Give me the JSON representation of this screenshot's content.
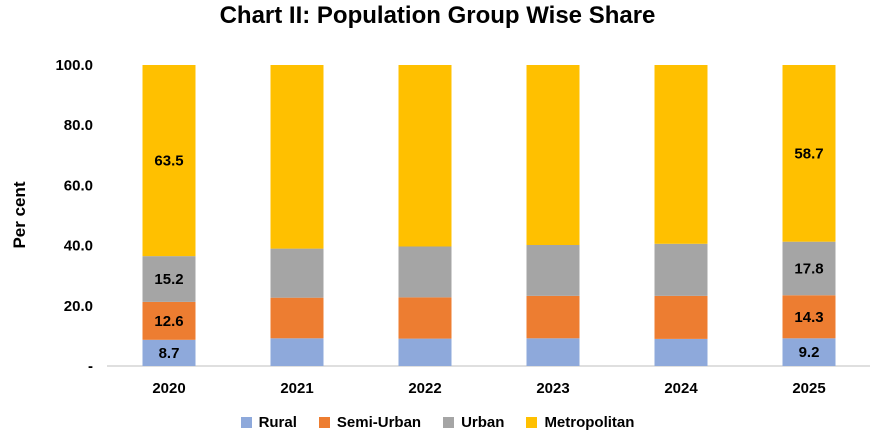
{
  "chart_data": {
    "type": "bar",
    "stacked": true,
    "title": "Chart II: Population Group Wise Share",
    "ylabel": "Per cent",
    "xlabel": "",
    "ylim": [
      0,
      100
    ],
    "yticks": [
      "-",
      "20.0",
      "40.0",
      "60.0",
      "80.0",
      "100.0"
    ],
    "categories": [
      "2020",
      "2021",
      "2022",
      "2023",
      "2024",
      "2025"
    ],
    "series": [
      {
        "name": "Rural",
        "color": "#8EA9DB",
        "values": [
          8.7,
          9.2,
          9.1,
          9.2,
          9.0,
          9.2
        ],
        "labels": [
          "8.7",
          "",
          "",
          "",
          "",
          "9.2"
        ]
      },
      {
        "name": "Semi-Urban",
        "color": "#ED7D31",
        "values": [
          12.6,
          13.5,
          13.7,
          14.1,
          14.3,
          14.3
        ],
        "labels": [
          "12.6",
          "",
          "",
          "",
          "",
          "14.3"
        ]
      },
      {
        "name": "Urban",
        "color": "#A5A5A5",
        "values": [
          15.2,
          16.3,
          16.9,
          16.9,
          17.3,
          17.8
        ],
        "labels": [
          "15.2",
          "",
          "",
          "",
          "",
          "17.8"
        ]
      },
      {
        "name": "Metropolitan",
        "color": "#FFC000",
        "values": [
          63.5,
          61.0,
          60.3,
          59.8,
          59.4,
          58.7
        ],
        "labels": [
          "63.5",
          "",
          "",
          "",
          "",
          "58.7"
        ]
      }
    ],
    "grid": false,
    "legend_position": "bottom"
  }
}
